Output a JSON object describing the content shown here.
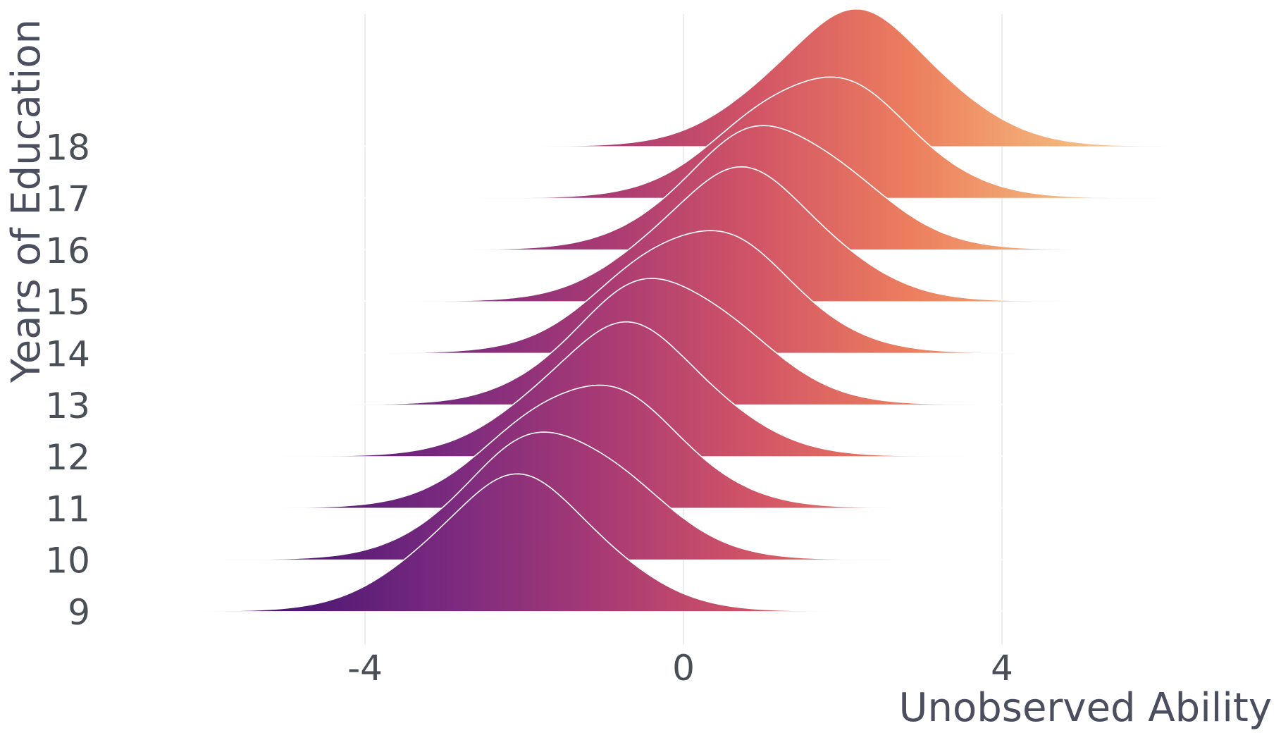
{
  "chart_data": {
    "type": "ridgeline",
    "xlabel": "Unobserved Ability",
    "ylabel": "Years of Education",
    "x_ticks": [
      -4,
      0,
      4
    ],
    "xlim": [
      -6.8,
      7.5
    ],
    "categories": [
      "9",
      "10",
      "11",
      "12",
      "13",
      "14",
      "15",
      "16",
      "17",
      "18"
    ],
    "series": [
      {
        "category": "9",
        "mean": -2.1,
        "sd": 1.05,
        "peak": 2.45
      },
      {
        "category": "10",
        "mean": -1.6,
        "sd": 1.05,
        "peak": 2.45
      },
      {
        "category": "11",
        "mean": -1.2,
        "sd": 1.05,
        "peak": 2.4
      },
      {
        "category": "12",
        "mean": -0.75,
        "sd": 1.05,
        "peak": 2.4
      },
      {
        "category": "13",
        "mean": -0.25,
        "sd": 1.05,
        "peak": 2.4
      },
      {
        "category": "14",
        "mean": 0.2,
        "sd": 1.05,
        "peak": 2.4
      },
      {
        "category": "15",
        "mean": 0.7,
        "sd": 1.05,
        "peak": 2.4
      },
      {
        "category": "16",
        "mean": 1.15,
        "sd": 1.05,
        "peak": 2.35
      },
      {
        "category": "17",
        "mean": 1.7,
        "sd": 1.05,
        "peak": 2.35
      },
      {
        "category": "18",
        "mean": 2.15,
        "sd": 1.05,
        "peak": 2.45
      }
    ],
    "fill_gradient": [
      "#2a1061",
      "#4d1874",
      "#7a2a7f",
      "#a83a74",
      "#d25566",
      "#ec7e5e",
      "#f4b57a",
      "#fae9c8"
    ],
    "ridge_outline_color": "#ffffff",
    "grid": true
  }
}
